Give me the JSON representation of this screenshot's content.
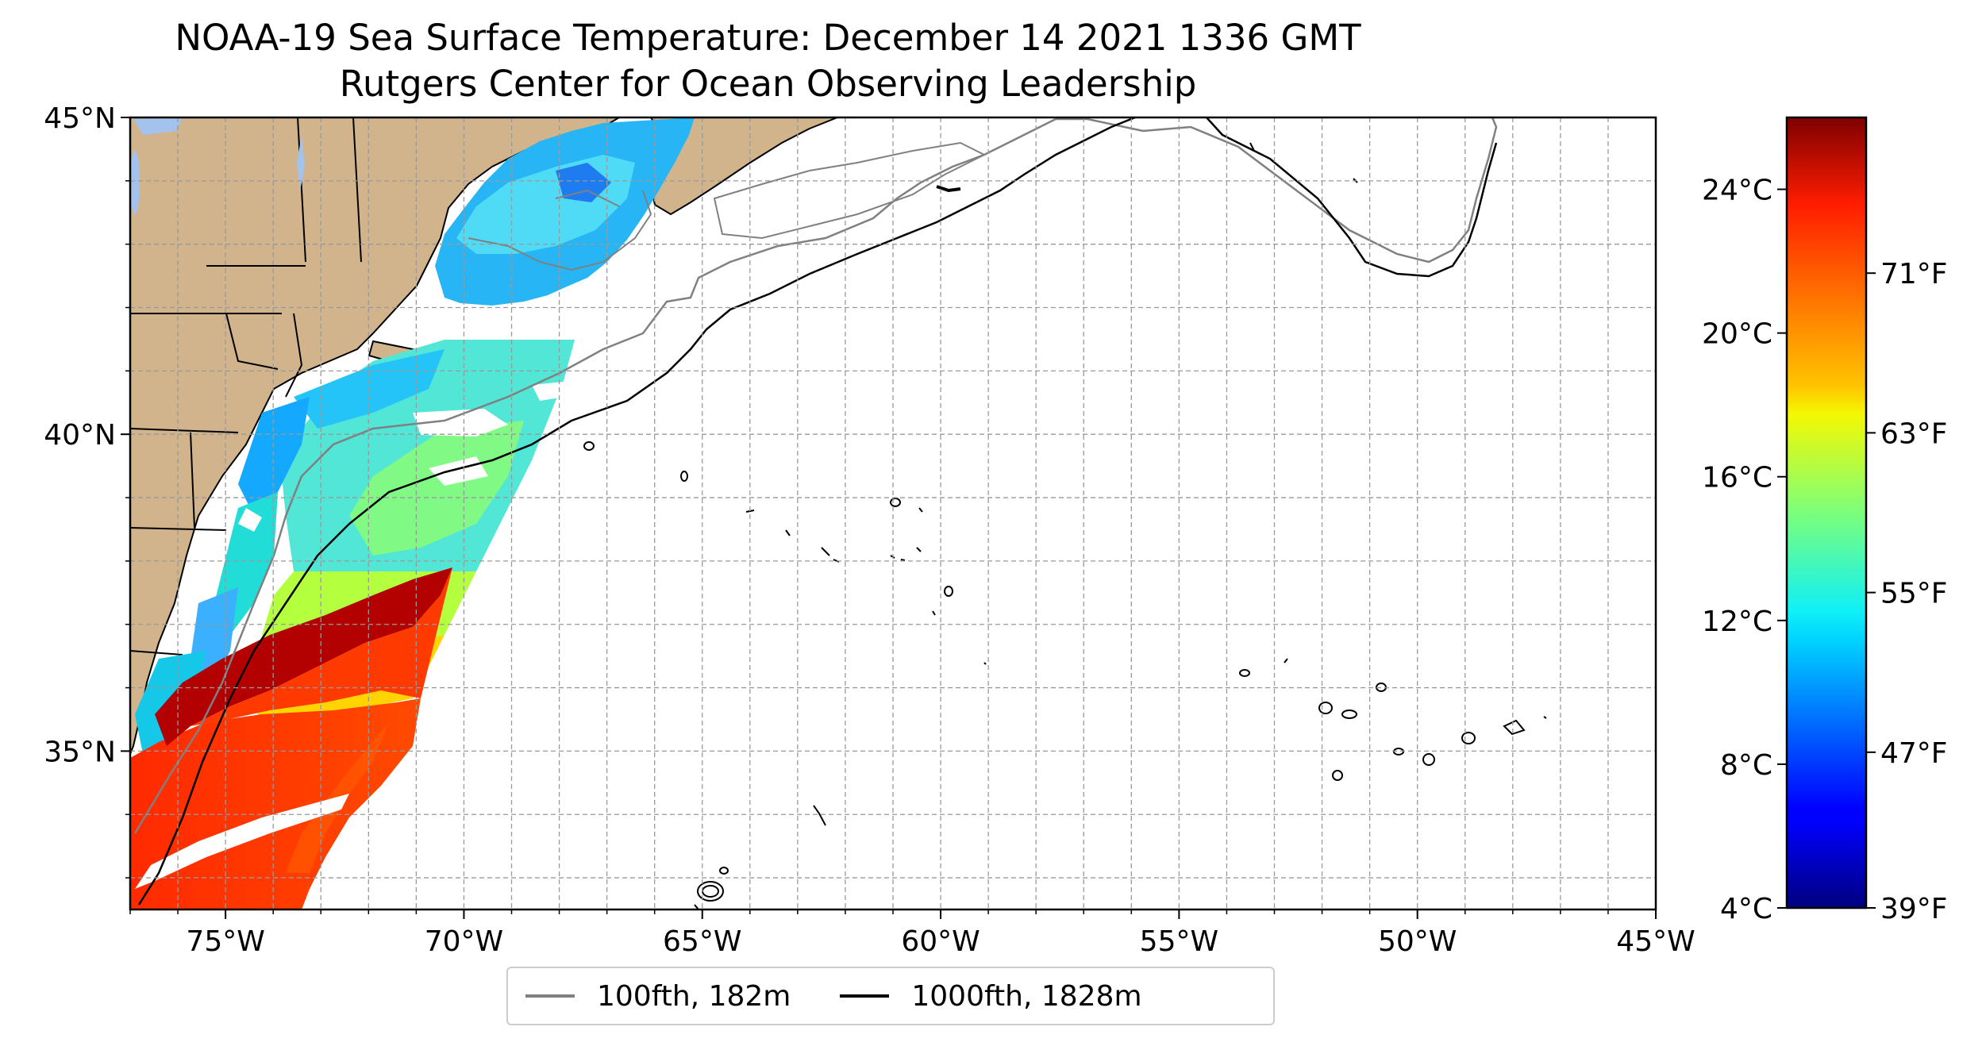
{
  "title": "NOAA-19 Sea Surface Temperature: December 14 2021 1336 GMT",
  "subtitle": "Rutgers Center for Ocean Observing Leadership",
  "map": {
    "lon_range": [
      -77,
      -45
    ],
    "lat_range": [
      32.5,
      45
    ],
    "lon_ticks": [
      "75°W",
      "70°W",
      "65°W",
      "60°W",
      "55°W",
      "50°W",
      "45°W"
    ],
    "lon_tick_values": [
      -75,
      -70,
      -65,
      -60,
      -55,
      -50,
      -45
    ],
    "lat_ticks": [
      "45°N",
      "40°N",
      "35°N"
    ],
    "lat_tick_values": [
      45,
      40,
      35
    ],
    "gridlines": true,
    "land_color": "#d2b48c",
    "water_color": "#a3c3ee"
  },
  "colorbar": {
    "colormap": "jet",
    "celsius_range": [
      4,
      26
    ],
    "celsius_ticks": [
      "24°C",
      "20°C",
      "16°C",
      "12°C",
      "8°C",
      "4°C"
    ],
    "celsius_values": [
      24,
      20,
      16,
      12,
      8,
      4
    ],
    "fahrenheit_ticks": [
      "71°F",
      "63°F",
      "55°F",
      "47°F",
      "39°F"
    ],
    "fahrenheit_values": [
      71,
      63,
      55,
      47,
      39
    ]
  },
  "legend": {
    "position": "below-map",
    "items": [
      {
        "label": "100fth, 182m",
        "color": "#808080"
      },
      {
        "label": "1000fth, 1828m",
        "color": "#000000"
      }
    ]
  }
}
